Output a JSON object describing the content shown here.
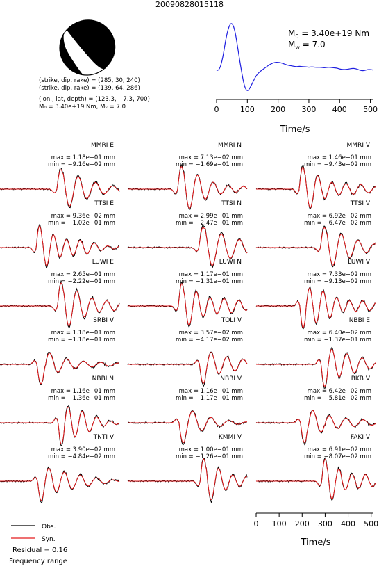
{
  "title": "20090828015118",
  "focal": {
    "line1": "(strike, dip, rake) = (285, 30, 240)",
    "line2": "(strike, dip, rake) = (139, 64, 286)",
    "line3": "(lon., lat, depth) = (123.3, −7.3, 700)",
    "line4": "M₀ = 3.40e+19 Nm, Mᵥ = 7.0"
  },
  "stf": {
    "m0_prefix": "M",
    "m0_sub": "0",
    "m0_value": " = 3.40e+19 Nm",
    "mw_prefix": "M",
    "mw_sub": "w",
    "mw_value": " = 7.0",
    "xlabel": "Time/s",
    "xticks": [
      "0",
      "100",
      "200",
      "300",
      "400",
      "500"
    ]
  },
  "bottom_axis": {
    "xlabel": "Time/s",
    "xticks": [
      "0",
      "100",
      "200",
      "300",
      "400",
      "500"
    ]
  },
  "legend": {
    "obs": "Obs.",
    "syn": "Syn.",
    "residual": "Residual = 0.16",
    "frequency": "Frequency range"
  },
  "colors": {
    "observed": "#000000",
    "synthetic": "#e41a1c",
    "stf_line": "#1f1fe0",
    "beachball_fill": "#000000"
  },
  "traces": [
    {
      "station": "MMRI E",
      "max": "max = 1.18e−01 mm",
      "min": "min = −9.16e−02 mm"
    },
    {
      "station": "MMRI N",
      "max": "max = 7.13e−02 mm",
      "min": "min = −1.69e−01 mm"
    },
    {
      "station": "MMRI V",
      "max": "max = 1.46e−01 mm",
      "min": "min = −9.43e−02 mm"
    },
    {
      "station": "TTSI E",
      "max": "max = 9.36e−02 mm",
      "min": "min = −1.02e−01 mm"
    },
    {
      "station": "TTSI N",
      "max": "max = 2.99e−01 mm",
      "min": "min = −2.47e−01 mm"
    },
    {
      "station": "TTSI V",
      "max": "max = 6.92e−02 mm",
      "min": "min = −6.47e−02 mm"
    },
    {
      "station": "LUWI E",
      "max": "max = 2.65e−01 mm",
      "min": "min = −2.22e−01 mm"
    },
    {
      "station": "LUWI N",
      "max": "max = 1.17e−01 mm",
      "min": "min = −1.31e−01 mm"
    },
    {
      "station": "LUWI V",
      "max": "max = 7.33e−02 mm",
      "min": "min = −9.13e−02 mm"
    },
    {
      "station": "SRBI V",
      "max": "max = 1.18e−01 mm",
      "min": "min = −1.18e−01 mm"
    },
    {
      "station": "TOLI V",
      "max": "max = 3.57e−02 mm",
      "min": "min = −4.17e−02 mm"
    },
    {
      "station": "NBBI E",
      "max": "max = 6.40e−02 mm",
      "min": "min = −1.37e−01 mm"
    },
    {
      "station": "NBBI N",
      "max": "max = 1.16e−01 mm",
      "min": "min = −1.36e−01 mm"
    },
    {
      "station": "NBBI V",
      "max": "max = 1.16e−01 mm",
      "min": "min = −1.17e−01 mm"
    },
    {
      "station": "BKB V",
      "max": "max = 6.42e−02 mm",
      "min": "min = −5.81e−02 mm"
    },
    {
      "station": "TNTI V",
      "max": "max = 3.90e−02 mm",
      "min": "min = −4.84e−02 mm"
    },
    {
      "station": "KMMI V",
      "max": "max = 1.00e−01 mm",
      "min": "min = −1.26e−01 mm"
    },
    {
      "station": "FAKI V",
      "max": "max = 6.91e−02 mm",
      "min": "min = −8.07e−02 mm"
    }
  ],
  "chart_data": [
    {
      "type": "line",
      "series": [
        {
          "x": [
            0,
            10,
            20,
            30,
            40,
            50,
            60,
            70,
            80,
            90,
            100,
            110,
            120,
            130,
            140,
            150,
            160,
            170,
            180,
            190,
            200,
            210,
            220,
            230,
            240,
            250,
            260,
            270,
            280,
            290,
            300,
            310,
            320,
            330,
            340,
            350,
            360,
            370,
            380,
            390,
            400,
            410,
            420,
            430,
            440,
            450,
            460,
            470,
            480,
            490,
            500,
            510
          ],
          "y": [
            0.08,
            0.1,
            0.3,
            0.65,
            0.88,
            0.95,
            0.8,
            0.45,
            0.1,
            -0.2,
            -0.3,
            -0.22,
            -0.1,
            0.0,
            0.06,
            0.1,
            0.14,
            0.18,
            0.21,
            0.23,
            0.23,
            0.22,
            0.2,
            0.18,
            0.17,
            0.16,
            0.15,
            0.16,
            0.15,
            0.15,
            0.14,
            0.15,
            0.14,
            0.14,
            0.14,
            0.13,
            0.14,
            0.14,
            0.13,
            0.13,
            0.11,
            0.1,
            0.1,
            0.11,
            0.12,
            0.12,
            0.1,
            0.08,
            0.08,
            0.1,
            0.1,
            0.09
          ]
        }
      ],
      "xlabel": "Time/s",
      "xlim": [
        0,
        510
      ]
    },
    {
      "type": "line",
      "panels": "seismograms, observed (black) vs synthetic (red), normalised amplitude",
      "xlabel": "Time/s",
      "xlim": [
        0,
        510
      ]
    }
  ]
}
